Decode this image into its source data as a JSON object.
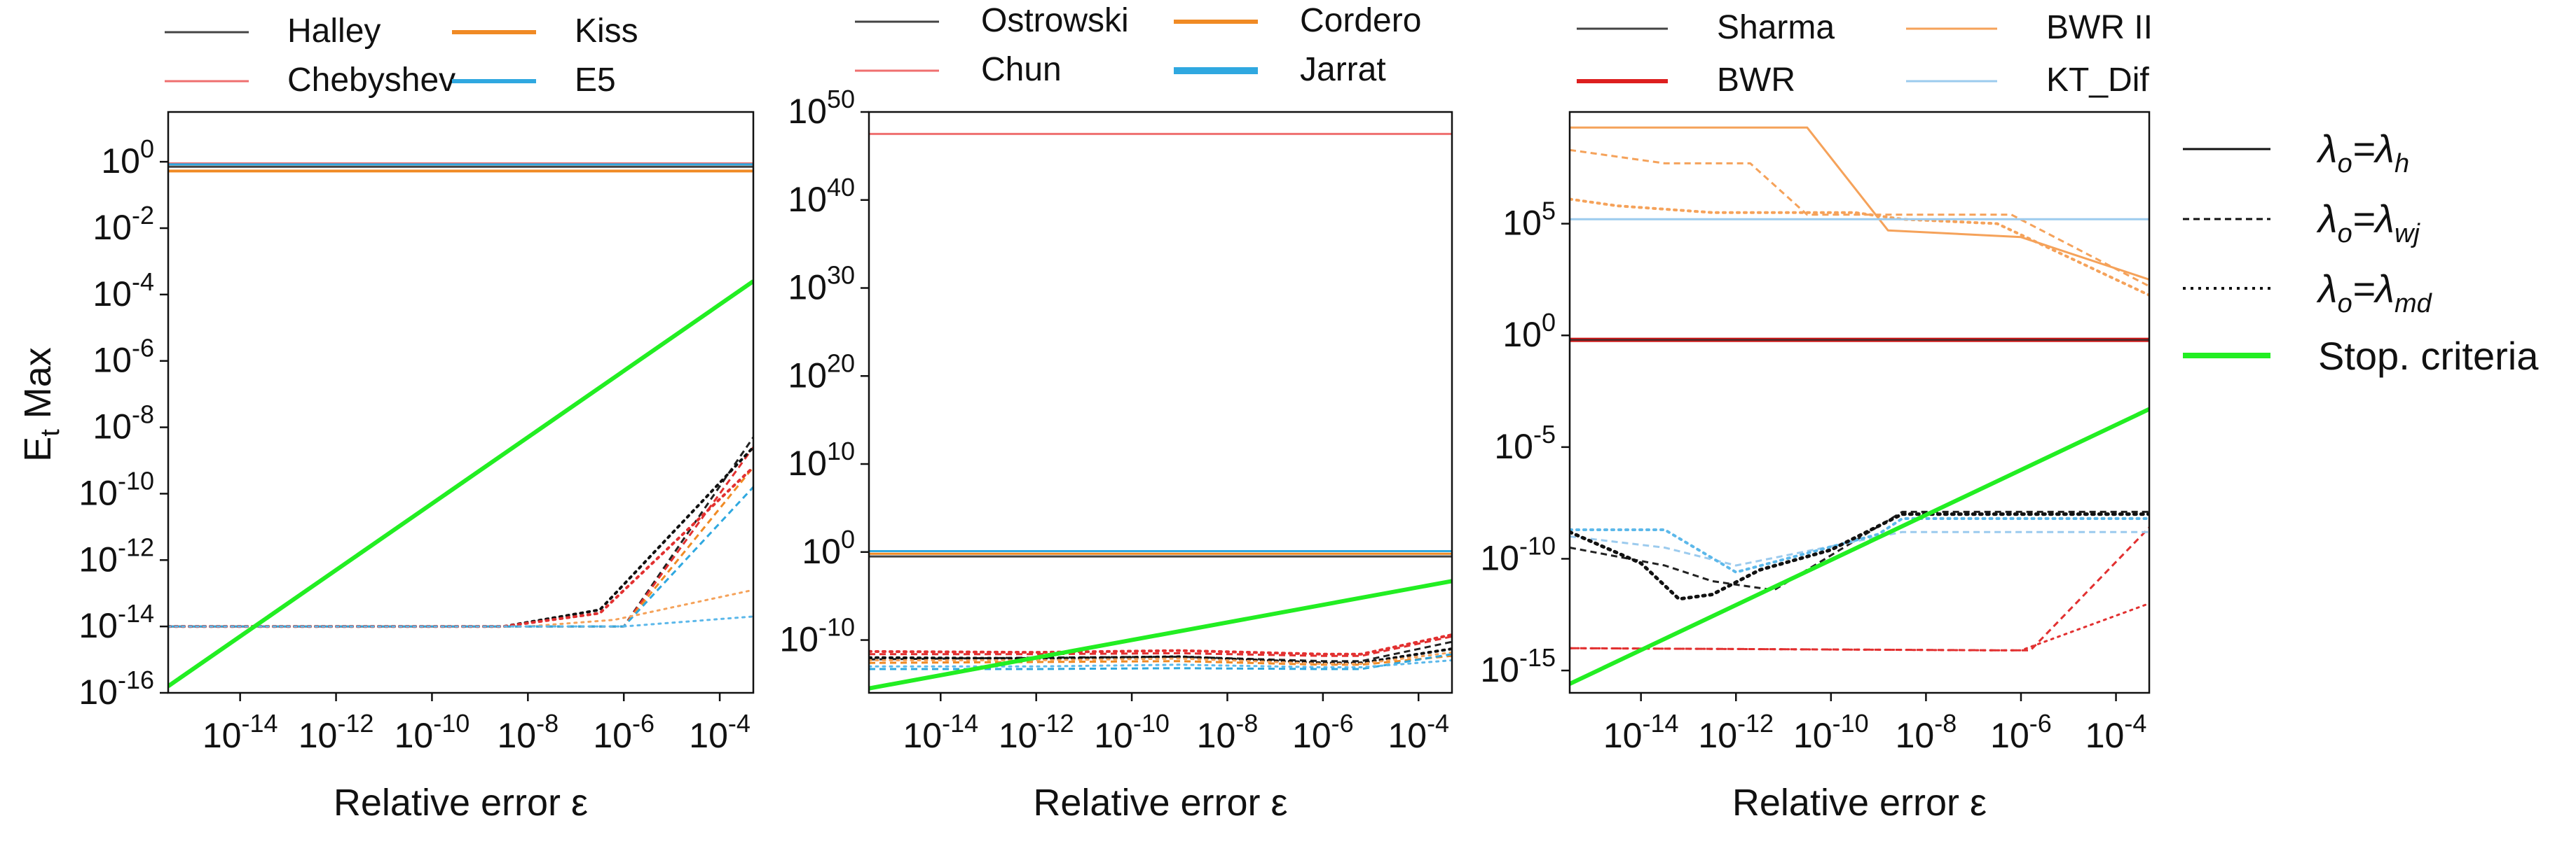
{
  "figure": {
    "ylabel_main": "E",
    "ylabel_sub": "t",
    "ylabel_rest": " Max"
  },
  "styles_legend": [
    {
      "pre": "λ",
      "s1": "o",
      "mid": "=λ",
      "s2": "h",
      "dash": "solid"
    },
    {
      "pre": "λ",
      "s1": "o",
      "mid": "=λ",
      "s2": "wj",
      "dash": "dashed"
    },
    {
      "pre": "λ",
      "s1": "o",
      "mid": "=λ",
      "s2": "md",
      "dash": "dotted"
    }
  ],
  "stop_legend": {
    "label": "Stop. criteria",
    "color": "#22ee22"
  },
  "chart_data": [
    {
      "type": "line",
      "xscale": "log",
      "yscale": "log",
      "xlabel": "Relative error ε",
      "xlim_exp": [
        -15.5,
        -3.3
      ],
      "ylim_exp": [
        -16,
        1.5
      ],
      "xticks": [
        -14,
        -12,
        -10,
        -8,
        -6,
        -4
      ],
      "yticks": [
        0,
        -2,
        -4,
        -6,
        -8,
        -10,
        -12,
        -14,
        -16
      ],
      "legend": [
        {
          "name": "Halley",
          "color": "#444444",
          "width": 3
        },
        {
          "name": "Chebyshev",
          "color": "#ef6f6f",
          "width": 3
        },
        {
          "name": "Kiss",
          "color": "#f08a24",
          "width": 6
        },
        {
          "name": "E5",
          "color": "#2fa8e0",
          "width": 6
        }
      ],
      "series": [
        {
          "name": "Halley",
          "style": "solid",
          "color": "#444444",
          "width": 3,
          "x": [
            -15.5,
            -3.3
          ],
          "y": [
            -0.15,
            -0.15
          ]
        },
        {
          "name": "Chebyshev",
          "style": "solid",
          "color": "#ef6f6f",
          "width": 3,
          "x": [
            -15.5,
            -3.3
          ],
          "y": [
            -0.05,
            -0.05
          ]
        },
        {
          "name": "Kiss",
          "style": "solid",
          "color": "#f08a24",
          "width": 4,
          "x": [
            -15.5,
            -3.3
          ],
          "y": [
            -0.28,
            -0.28
          ]
        },
        {
          "name": "E5",
          "style": "solid",
          "color": "#2fa8e0",
          "width": 3,
          "x": [
            -15.5,
            -3.3
          ],
          "y": [
            -0.08,
            -0.08
          ]
        },
        {
          "name": "Halley",
          "style": "dashed",
          "color": "#222222",
          "width": 3,
          "x": [
            -15.5,
            -8,
            -6,
            -3.3
          ],
          "y": [
            -14,
            -14,
            -14,
            -8.3
          ]
        },
        {
          "name": "Chebyshev",
          "style": "dashed",
          "color": "#e23030",
          "width": 3,
          "x": [
            -15.5,
            -8,
            -6,
            -3.3
          ],
          "y": [
            -14,
            -14,
            -14,
            -8.6
          ]
        },
        {
          "name": "Kiss",
          "style": "dashed",
          "color": "#f08a24",
          "width": 3,
          "x": [
            -15.5,
            -8,
            -6,
            -3.3
          ],
          "y": [
            -14,
            -14,
            -14,
            -9.2
          ]
        },
        {
          "name": "E5",
          "style": "dashed",
          "color": "#2fa8e0",
          "width": 3,
          "x": [
            -15.5,
            -8,
            -6,
            -3.3
          ],
          "y": [
            -14,
            -14,
            -14,
            -9.8
          ]
        },
        {
          "name": "Halley",
          "style": "dotted",
          "color": "#111111",
          "width": 4,
          "x": [
            -15.5,
            -8.5,
            -6.5,
            -3.3
          ],
          "y": [
            -14,
            -14,
            -13.5,
            -8.6
          ]
        },
        {
          "name": "Chebyshev",
          "style": "dotted",
          "color": "#e23030",
          "width": 4,
          "x": [
            -15.5,
            -8.5,
            -6.5,
            -3.3
          ],
          "y": [
            -14,
            -14,
            -13.6,
            -9.2
          ]
        },
        {
          "name": "Kiss",
          "style": "dotted",
          "color": "#f5a25a",
          "width": 3,
          "x": [
            -15.5,
            -8,
            -6.2,
            -3.3
          ],
          "y": [
            -14,
            -14,
            -13.8,
            -12.9
          ]
        },
        {
          "name": "E5",
          "style": "dotted",
          "color": "#5cb8ea",
          "width": 3,
          "x": [
            -15.5,
            -6,
            -3.3
          ],
          "y": [
            -14,
            -14,
            -13.7
          ]
        },
        {
          "name": "Stop. criteria",
          "style": "solid",
          "color": "#22ee22",
          "width": 6,
          "x": [
            -15.5,
            -3.3
          ],
          "y": [
            -15.8,
            -3.6
          ]
        }
      ]
    },
    {
      "type": "line",
      "xscale": "log",
      "yscale": "log",
      "xlabel": "Relative error ε",
      "xlim_exp": [
        -15.5,
        -3.3
      ],
      "ylim_exp": [
        -16,
        50
      ],
      "xticks": [
        -14,
        -12,
        -10,
        -8,
        -6,
        -4
      ],
      "yticks": [
        50,
        40,
        30,
        20,
        10,
        0,
        -10
      ],
      "legend": [
        {
          "name": "Ostrowski",
          "color": "#444444",
          "width": 3
        },
        {
          "name": "Chun",
          "color": "#ef6f6f",
          "width": 3
        },
        {
          "name": "Cordero",
          "color": "#f08a24",
          "width": 6
        },
        {
          "name": "Jarrat",
          "color": "#2fa8e0",
          "width": 10
        }
      ],
      "series": [
        {
          "name": "Chun",
          "style": "solid",
          "color": "#ef6f6f",
          "width": 3,
          "x": [
            -15.5,
            -3.3
          ],
          "y": [
            47.5,
            47.5
          ]
        },
        {
          "name": "Jarrat",
          "style": "solid",
          "color": "#2fa8e0",
          "width": 3,
          "x": [
            -15.5,
            -3.3
          ],
          "y": [
            0.1,
            0.1
          ]
        },
        {
          "name": "Cordero",
          "style": "solid",
          "color": "#f08a24",
          "width": 3,
          "x": [
            -15.5,
            -3.3
          ],
          "y": [
            -0.2,
            -0.2
          ]
        },
        {
          "name": "Ostrowski",
          "style": "solid",
          "color": "#444444",
          "width": 3,
          "x": [
            -15.5,
            -3.3
          ],
          "y": [
            -0.5,
            -0.5
          ]
        },
        {
          "name": "Ostrowski",
          "style": "dashed",
          "color": "#222222",
          "width": 3,
          "x": [
            -15.5,
            -12,
            -9,
            -6,
            -5.2,
            -3.3
          ],
          "y": [
            -12.2,
            -12,
            -11.9,
            -12.4,
            -12.4,
            -10.2
          ]
        },
        {
          "name": "Chun",
          "style": "dashed",
          "color": "#e23030",
          "width": 3,
          "x": [
            -15.5,
            -12,
            -9,
            -6,
            -5.2,
            -3.3
          ],
          "y": [
            -11.6,
            -11.6,
            -11.5,
            -11.8,
            -11.8,
            -9.6
          ]
        },
        {
          "name": "Cordero",
          "style": "dashed",
          "color": "#f08a24",
          "width": 3,
          "x": [
            -15.5,
            -12,
            -9,
            -6,
            -5.2,
            -3.3
          ],
          "y": [
            -12.6,
            -12.5,
            -12.4,
            -12.8,
            -12.8,
            -11.8
          ]
        },
        {
          "name": "Jarrat",
          "style": "dashed",
          "color": "#2fa8e0",
          "width": 3,
          "x": [
            -15.5,
            -12,
            -9,
            -6,
            -5.2,
            -3.3
          ],
          "y": [
            -13.3,
            -13.3,
            -13.2,
            -13.3,
            -13.3,
            -11.6
          ]
        },
        {
          "name": "Ostrowski",
          "style": "dotted",
          "color": "#111111",
          "width": 4,
          "x": [
            -15.5,
            -12,
            -9,
            -6,
            -5.2,
            -3.3
          ],
          "y": [
            -12.0,
            -12.1,
            -11.9,
            -12.6,
            -12.6,
            -11.0
          ]
        },
        {
          "name": "Chun",
          "style": "dotted",
          "color": "#e23030",
          "width": 4,
          "x": [
            -15.5,
            -12,
            -9,
            -6,
            -5.2,
            -3.3
          ],
          "y": [
            -11.3,
            -11.4,
            -11.2,
            -11.6,
            -11.6,
            -9.4
          ]
        },
        {
          "name": "Cordero",
          "style": "dotted",
          "color": "#f5a25a",
          "width": 3,
          "x": [
            -15.5,
            -12,
            -9,
            -6,
            -5.2,
            -3.3
          ],
          "y": [
            -12.3,
            -12.3,
            -12.1,
            -12.7,
            -12.7,
            -11.4
          ]
        },
        {
          "name": "Jarrat",
          "style": "dotted",
          "color": "#5cb8ea",
          "width": 3,
          "x": [
            -15.5,
            -12,
            -9,
            -6,
            -5.2,
            -3.3
          ],
          "y": [
            -13.0,
            -13.0,
            -12.8,
            -13.1,
            -13.1,
            -12.3
          ]
        },
        {
          "name": "Stop. criteria",
          "style": "solid",
          "color": "#22ee22",
          "width": 6,
          "x": [
            -15.5,
            -3.3
          ],
          "y": [
            -15.5,
            -3.3
          ]
        }
      ]
    },
    {
      "type": "line",
      "xscale": "log",
      "yscale": "log",
      "xlabel": "Relative error ε",
      "xlim_exp": [
        -15.5,
        -3.3
      ],
      "ylim_exp": [
        -16,
        10
      ],
      "xticks": [
        -14,
        -12,
        -10,
        -8,
        -6,
        -4
      ],
      "yticks": [
        5,
        0,
        -5,
        -10,
        -15
      ],
      "legend": [
        {
          "name": "Sharma",
          "color": "#444444",
          "width": 3
        },
        {
          "name": "BWR",
          "color": "#dd1f1f",
          "width": 6
        },
        {
          "name": "BWR II",
          "color": "#f5a25a",
          "width": 3
        },
        {
          "name": "KT_Dif",
          "color": "#9ccbee",
          "width": 3
        }
      ],
      "series": [
        {
          "name": "BWR II",
          "style": "solid",
          "color": "#f5a25a",
          "width": 3,
          "x": [
            -15.5,
            -10.5,
            -8.8,
            -6,
            -3.3
          ],
          "y": [
            9.3,
            9.3,
            4.7,
            4.4,
            2.5
          ]
        },
        {
          "name": "BWR II",
          "style": "dashed",
          "color": "#f5a25a",
          "width": 3,
          "x": [
            -15.5,
            -13.5,
            -11.7,
            -10.5,
            -6.2,
            -3.3
          ],
          "y": [
            8.3,
            7.7,
            7.7,
            5.4,
            5.4,
            2.2
          ]
        },
        {
          "name": "BWR II",
          "style": "dotted",
          "color": "#f5a25a",
          "width": 4,
          "x": [
            -15.5,
            -14.5,
            -12.5,
            -9.5,
            -8.5,
            -6.5,
            -3.3
          ],
          "y": [
            6.1,
            5.8,
            5.5,
            5.5,
            5.2,
            5.0,
            1.8
          ]
        },
        {
          "name": "KT_Dif",
          "style": "solid",
          "color": "#9ccbee",
          "width": 3,
          "x": [
            -15.5,
            -3.3
          ],
          "y": [
            5.2,
            5.2
          ]
        },
        {
          "name": "BWR",
          "style": "solid",
          "color": "#cc1111",
          "width": 6,
          "x": [
            -15.5,
            -3.3
          ],
          "y": [
            -0.2,
            -0.2
          ]
        },
        {
          "name": "Sharma",
          "style": "solid",
          "color": "#333333",
          "width": 2,
          "x": [
            -15.5,
            -3.3
          ],
          "y": [
            -0.2,
            -0.2
          ]
        },
        {
          "name": "Sharma",
          "style": "dashed",
          "color": "#222222",
          "width": 3,
          "x": [
            -15.5,
            -13.5,
            -12.5,
            -11.2,
            -8.5,
            -3.3
          ],
          "y": [
            -9.5,
            -10.3,
            -11.0,
            -11.4,
            -7.9,
            -7.9
          ]
        },
        {
          "name": "BWR",
          "style": "dashed",
          "color": "#e23030",
          "width": 3,
          "x": [
            -15.5,
            -6.2,
            -5.8,
            -3.3
          ],
          "y": [
            -14.0,
            -14.1,
            -14.1,
            -8.6
          ]
        },
        {
          "name": "BWR",
          "style": "dotted",
          "color": "#e23030",
          "width": 3,
          "x": [
            -15.5,
            -6.5,
            -6.0,
            -3.3
          ],
          "y": [
            -14.0,
            -14.1,
            -14.1,
            -12.0
          ]
        },
        {
          "name": "KT_Dif",
          "style": "dashed",
          "color": "#9ccbee",
          "width": 3,
          "x": [
            -15.5,
            -13.5,
            -12,
            -8.5,
            -3.3
          ],
          "y": [
            -9.0,
            -9.5,
            -10.3,
            -8.8,
            -8.8
          ]
        },
        {
          "name": "KT_Dif",
          "style": "dotted",
          "color": "#5cb8ea",
          "width": 4,
          "x": [
            -15.5,
            -14,
            -13.5,
            -12,
            -9,
            -8.5,
            -3.3
          ],
          "y": [
            -8.7,
            -8.7,
            -8.7,
            -10.6,
            -8.9,
            -8.2,
            -8.2
          ]
        },
        {
          "name": "Sharma",
          "style": "dotted",
          "color": "#111111",
          "width": 5,
          "x": [
            -15.5,
            -14,
            -13.2,
            -12.5,
            -11.5,
            -10,
            -8.5,
            -3.3
          ],
          "y": [
            -8.8,
            -10.2,
            -11.8,
            -11.6,
            -10.5,
            -9.6,
            -8.0,
            -8.0
          ]
        },
        {
          "name": "Stop. criteria",
          "style": "solid",
          "color": "#22ee22",
          "width": 6,
          "x": [
            -15.5,
            -3.3
          ],
          "y": [
            -15.6,
            -3.3
          ]
        }
      ]
    }
  ]
}
